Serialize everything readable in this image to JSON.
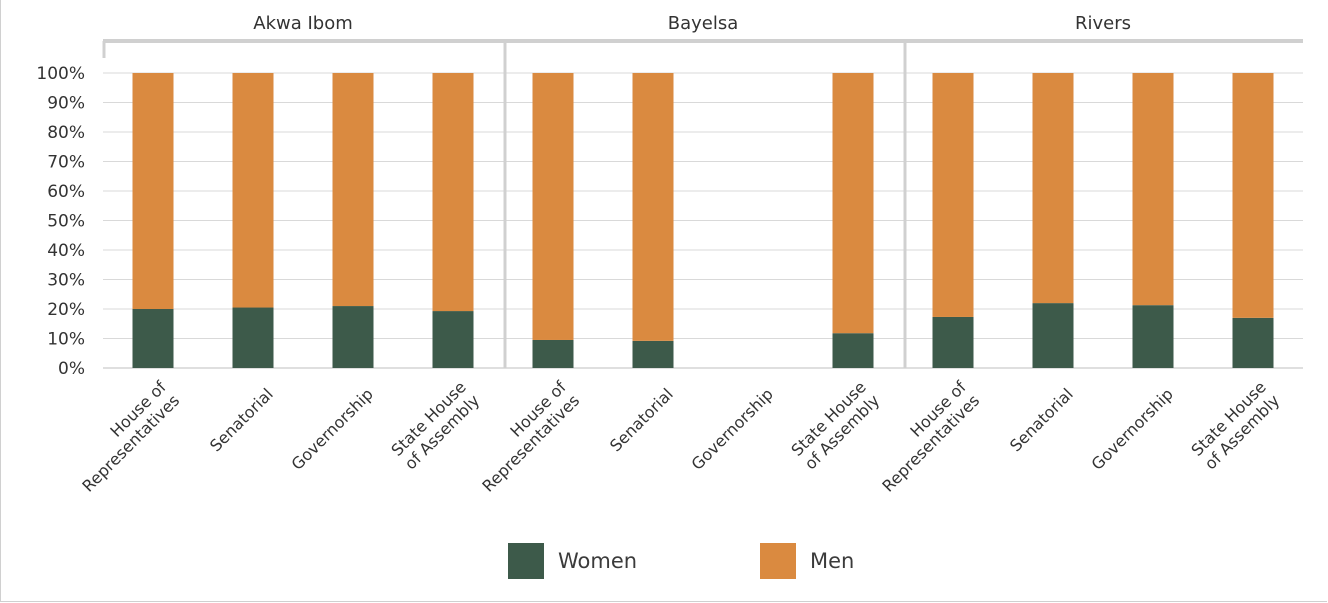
{
  "chart_data": {
    "type": "bar",
    "stacked": true,
    "percent": true,
    "groups": [
      "Akwa Ibom",
      "Bayelsa",
      "Rivers"
    ],
    "categories": [
      [
        "House of",
        "Representatives"
      ],
      [
        "Senatorial"
      ],
      [
        "Governorship"
      ],
      [
        "State House",
        "of Assembly"
      ]
    ],
    "series": [
      {
        "name": "Women",
        "color": "#3d5a4a",
        "values": [
          [
            20,
            20.5,
            21,
            19.3
          ],
          [
            9.5,
            9.2,
            0,
            11.8
          ],
          [
            17.3,
            22,
            21.3,
            17
          ]
        ]
      },
      {
        "name": "Men",
        "color": "#da8a40",
        "values": [
          [
            80,
            79.5,
            79,
            80.7
          ],
          [
            90.5,
            90.8,
            0,
            88.2
          ],
          [
            82.7,
            78,
            78.7,
            83
          ]
        ]
      }
    ],
    "yticks": [
      "0%",
      "10%",
      "20%",
      "30%",
      "40%",
      "50%",
      "60%",
      "70%",
      "80%",
      "90%",
      "100%"
    ],
    "ylim": [
      0,
      100
    ],
    "grid": true,
    "legend_position": "bottom"
  },
  "legend": {
    "women_label": "Women",
    "men_label": "Men"
  }
}
